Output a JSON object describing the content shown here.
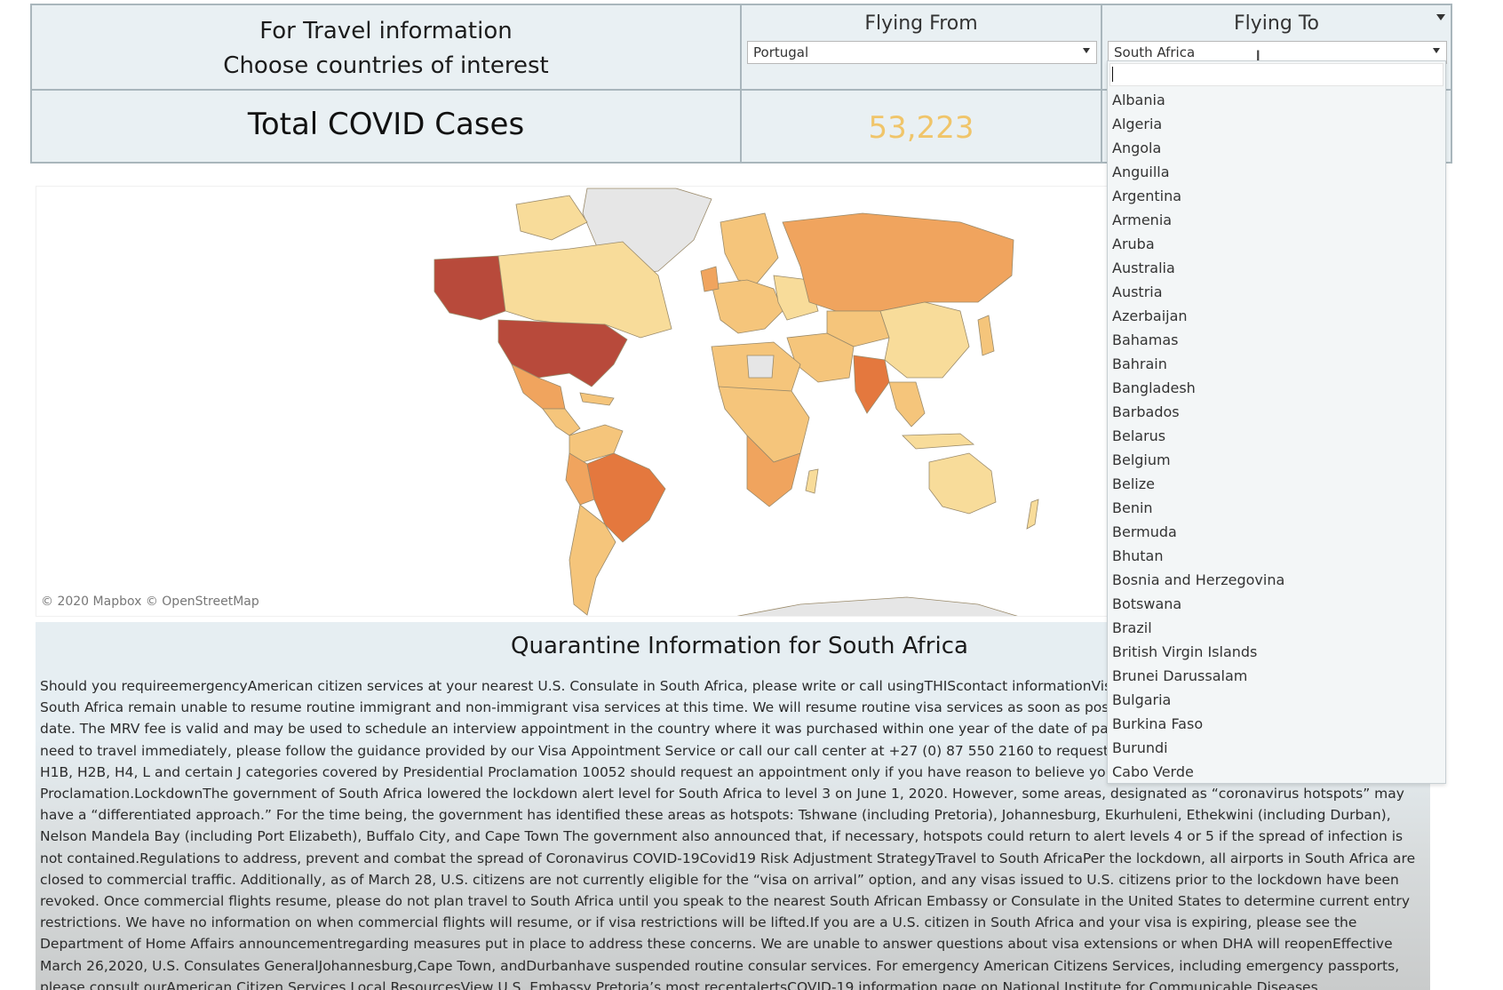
{
  "header": {
    "intro_line1": "For Travel information",
    "intro_line2": "Choose countries of interest",
    "total_label": "Total COVID Cases",
    "total_value": "53,223"
  },
  "filters": {
    "from": {
      "title": "Flying From",
      "selected": "Portugal"
    },
    "to": {
      "title": "Flying To",
      "selected": "South Africa",
      "search_value": ""
    }
  },
  "dropdown": {
    "items": [
      "Albania",
      "Algeria",
      "Angola",
      "Anguilla",
      "Argentina",
      "Armenia",
      "Aruba",
      "Australia",
      "Austria",
      "Azerbaijan",
      "Bahamas",
      "Bahrain",
      "Bangladesh",
      "Barbados",
      "Belarus",
      "Belgium",
      "Belize",
      "Benin",
      "Bermuda",
      "Bhutan",
      "Bosnia and Herzegovina",
      "Botswana",
      "Brazil",
      "British Virgin Islands",
      "Brunei Darussalam",
      "Bulgaria",
      "Burkina Faso",
      "Burundi",
      "Cabo Verde"
    ]
  },
  "map": {
    "attribution": "© 2020 Mapbox  © OpenStreetMap",
    "colors": {
      "highest": "#b84a3b",
      "high": "#e4783e",
      "medium": "#f0a45e",
      "low": "#f5c57b",
      "lowest": "#f8dc9a",
      "no_data": "#e6e6e6",
      "background_land": "#eeeeee"
    }
  },
  "quarantine": {
    "title": "Quarantine Information for South Africa",
    "body": "Should you requireemergencyAmerican citizen services at your nearest U.S. Consulate in South Africa, please write or call usingTHIScontact informationVisa Services: U.S. Embassy and Consulates in South Africa remain unable to resume routine immigrant and non-immigrant visa services at this time. We will resume routine visa services as soon as possible but are unable to provide a specific date. The MRV fee is valid and may be used to schedule an interview appointment in the country where it was purchased within one year of the date of payment. If you have an urgent matter and need to travel immediately, please follow the guidance provided by our Visa Appointment Service or call our call center at +27 (0) 87 550 2160 to request an emergency appointment. Applicants for H1B, H2B, H4, L and certain J categories covered by Presidential Proclamation 10052 should request an appointment only if you have reason to believe you may qualify for an exception under the Proclamation.LockdownThe government of South Africa lowered the lockdown alert level for South Africa to level 3 on June 1, 2020. However, some areas, designated as “coronavirus hotspots” may have a “differentiated approach.” For the time being, the government has identified these areas as hotspots: Tshwane (including Pretoria), Johannesburg, Ekurhuleni, Ethekwini (including Durban), Nelson Mandela Bay (including Port Elizabeth), Buffalo City, and Cape Town The government also announced that, if necessary, hotspots could return to alert levels 4 or 5 if the spread of infection is not contained.Regulations to address, prevent and combat the spread of Coronavirus COVID-19Covid19 Risk Adjustment StrategyTravel to South AfricaPer the lockdown, all airports in South Africa are closed to commercial traffic. Additionally, as of March 28, U.S. citizens are not currently eligible for the “visa on arrival” option, and any visas issued to U.S. citizens prior to the lockdown have been revoked. Once commercial flights resume, please do not plan travel to South Africa until you speak to the nearest South African Embassy or Consulate in the United States to determine current entry restrictions. We have no information on when commercial flights will resume, or if visa restrictions will be lifted.If you are a U.S. citizen in South Africa and your visa is expiring, please see the Department of Home Affairs announcementregarding measures put in place to address these concerns. We are unable to answer questions about visa extensions or when DHA will reopenEffective March 26,2020, U.S. Consulates GeneralJohannesburg,Cape Town, andDurbanhave suspended routine consular services. For emergency American Citizens Services, including emergency passports, please consult ourAmerican Citizen Services Local ResourcesView U.S. Embassy Pretoria’s most recentalertsCOVID-19 information page on National Institute for Communicable Diseases (NICD)Department of Home Affairs page for latest"
  }
}
